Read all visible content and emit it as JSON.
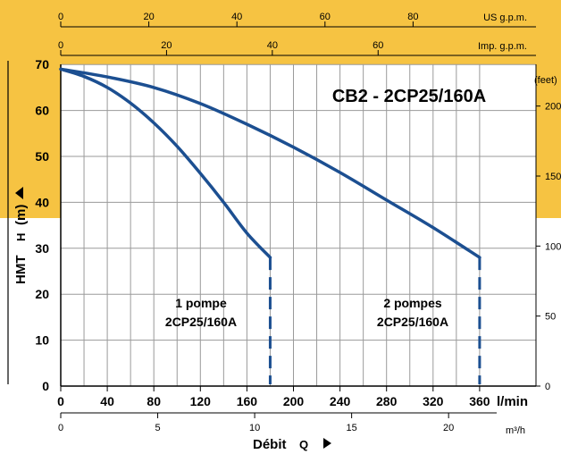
{
  "chart_data": {
    "type": "line",
    "title": "CB2 - 2CP25/160A",
    "xlabel": "Débit",
    "xsymbol": "Q",
    "ylabel": "HMT",
    "ysymbol": "H",
    "yunit": "(m)",
    "x_unit": "l/min",
    "x_unit_alt": "m³/h",
    "top_unit_us": "US g.p.m.",
    "top_unit_imp": "Imp. g.p.m.",
    "right_unit": "(feet)",
    "xlim": [
      0,
      380
    ],
    "ylim": [
      0,
      70
    ],
    "x_ticks": [
      "0",
      "40",
      "80",
      "120",
      "160",
      "200",
      "240",
      "280",
      "320",
      "360"
    ],
    "y_ticks": [
      "0",
      "10",
      "20",
      "30",
      "40",
      "50",
      "60",
      "70"
    ],
    "m3h_ticks": [
      "0",
      "5",
      "10",
      "15",
      "20"
    ],
    "us_gpm_ticks": [
      "0",
      "20",
      "40",
      "60",
      "80"
    ],
    "imp_gpm_ticks": [
      "0",
      "20",
      "40",
      "60"
    ],
    "feet_ticks": [
      "0",
      "50",
      "100",
      "150",
      "200"
    ],
    "grid": true,
    "colors": {
      "curve": "#1c4f91",
      "band": "#f6c342",
      "axis": "#000000"
    },
    "series": [
      {
        "label_line1": "1 pompe",
        "label_line2": "2CP25/160A",
        "x": [
          0,
          20,
          40,
          60,
          80,
          100,
          120,
          140,
          160,
          180
        ],
        "y": [
          69,
          67.4,
          65,
          61.6,
          57.3,
          52.2,
          46.3,
          40.0,
          33.3,
          28
        ]
      },
      {
        "label_line1": "2 pompes",
        "label_line2": "2CP25/160A",
        "x": [
          0,
          40,
          80,
          120,
          160,
          200,
          240,
          280,
          320,
          360
        ],
        "y": [
          69,
          67.3,
          65,
          61.5,
          57,
          52,
          46.5,
          40.5,
          34.5,
          28
        ]
      }
    ],
    "cutoff_x": [
      180,
      360
    ],
    "cutoff_to_y": 0
  }
}
